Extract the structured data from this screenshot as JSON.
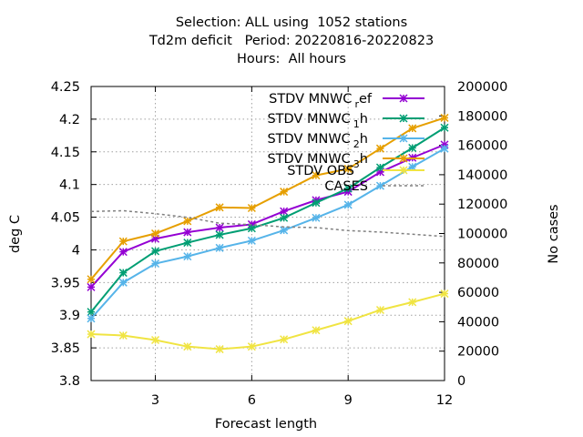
{
  "title_lines": [
    "Selection: ALL using  1052 stations",
    "Td2m deficit   Period: 20220816-20220823",
    "Hours:  All hours"
  ],
  "chart_data": {
    "type": "line",
    "xlabel": "Forecast length",
    "ylabel": "deg C",
    "y2label": "No cases",
    "xlim": [
      1,
      12
    ],
    "ylim": [
      3.8,
      4.25
    ],
    "y2lim": [
      0,
      200000
    ],
    "x_ticks": [
      3,
      6,
      9,
      12
    ],
    "y_ticks": [
      "3.8",
      "3.85",
      "3.9",
      "3.95",
      "4",
      "4.05",
      "4.1",
      "4.15",
      "4.2",
      "4.25"
    ],
    "y2_ticks": [
      "0",
      "20000",
      "40000",
      "60000",
      "80000",
      "100000",
      "120000",
      "140000",
      "160000",
      "180000",
      "200000"
    ],
    "grid": true,
    "legend_position": "top-right",
    "x": [
      1,
      2,
      3,
      4,
      5,
      6,
      7,
      8,
      9,
      10,
      11,
      12
    ],
    "series": [
      {
        "name": "STDV MNWC",
        "sub": "r",
        "suffix": "ef",
        "color": "#9400d3",
        "axis": "left",
        "marker": "x-star",
        "values": [
          3.943,
          3.997,
          4.017,
          4.027,
          4.034,
          4.039,
          4.059,
          4.076,
          4.089,
          4.119,
          4.141,
          4.161
        ]
      },
      {
        "name": "STDV MNWC",
        "sub": "1",
        "suffix": "h",
        "color": "#009e73",
        "axis": "left",
        "marker": "x-star",
        "values": [
          3.905,
          3.965,
          3.998,
          4.011,
          4.023,
          4.033,
          4.049,
          4.072,
          4.094,
          4.126,
          4.156,
          4.187
        ]
      },
      {
        "name": "STDV MNWC",
        "sub": "2",
        "suffix": "h",
        "color": "#56b4e9",
        "axis": "left",
        "marker": "x-star",
        "values": [
          3.895,
          3.95,
          3.979,
          3.99,
          4.003,
          4.014,
          4.03,
          4.049,
          4.069,
          4.098,
          4.127,
          4.155
        ]
      },
      {
        "name": "STDV MNWC",
        "sub": "3",
        "suffix": "h",
        "color": "#e69f00",
        "axis": "left",
        "marker": "x-star",
        "values": [
          3.955,
          4.013,
          4.025,
          4.044,
          4.065,
          4.064,
          4.089,
          4.114,
          4.124,
          4.155,
          4.186,
          4.202
        ]
      },
      {
        "name": "STDV OBS",
        "sub": "",
        "suffix": "",
        "color": "#f0e442",
        "axis": "left",
        "marker": "x-star",
        "values": [
          3.871,
          3.869,
          3.862,
          3.852,
          3.848,
          3.852,
          3.863,
          3.877,
          3.891,
          3.908,
          3.92,
          3.933
        ]
      },
      {
        "name": "CASES",
        "sub": "",
        "suffix": "",
        "color": "#808080",
        "axis": "right",
        "marker": "none",
        "dashed": true,
        "values": [
          115000,
          115500,
          113500,
          111000,
          107000,
          106000,
          104500,
          104000,
          102000,
          101000,
          99500,
          98000
        ]
      }
    ]
  }
}
